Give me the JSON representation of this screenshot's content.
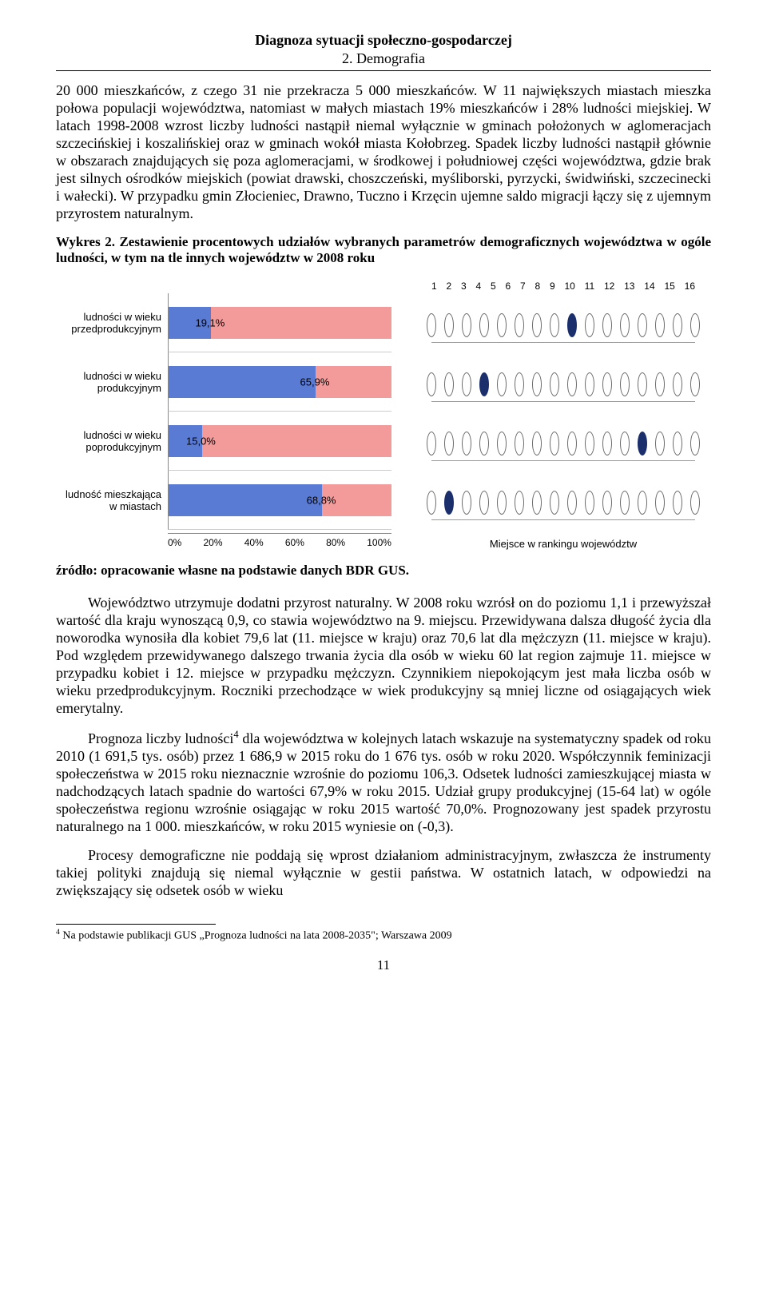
{
  "header": {
    "title": "Diagnoza sytuacji społeczno-gospodarczej",
    "subtitle": "2. Demografia"
  },
  "para1": "20 000 mieszkańców, z czego 31 nie przekracza 5 000 mieszkańców. W 11 największych miastach mieszka połowa populacji województwa, natomiast w małych miastach 19% mieszkańców i 28% ludności miejskiej. W latach 1998-2008 wzrost liczby ludności nastąpił niemal wyłącznie w gminach położonych w aglomeracjach szczecińskiej i koszalińskiej oraz w gminach wokół miasta Kołobrzeg. Spadek liczby ludności nastąpił głównie w obszarach znajdujących się poza aglomeracjami, w środkowej i południowej części województwa, gdzie brak jest silnych ośrodków miejskich (powiat drawski, choszczeński, myśliborski, pyrzycki, świdwiński, szczecinecki i wałecki). W przypadku gmin Złocieniec, Drawno, Tuczno i Krzęcin ujemne saldo migracji łączy się z ujemnym przyrostem naturalnym.",
  "chart_title_bold": "Wykres 2. Zestawienie procentowych udziałów wybranych parametrów demograficznych województwa w ogóle ludności, w tym na tle innych województw w 2008 roku",
  "chart": {
    "type": "bar+ranking",
    "bar_max_pct": 100,
    "blue": "#5a7bd4",
    "pink": "#f39a9a",
    "bg": "#ffffff",
    "rank_count": 16,
    "marker_fill": "#1a2f6b",
    "marker_stroke": "#6b6b6b",
    "rows": [
      {
        "label": "ludności w wieku przedprodukcyjnym",
        "value": 19.1,
        "val_text": "19,1%",
        "rank": 9
      },
      {
        "label": "ludności w wieku produkcyjnym",
        "value": 65.9,
        "val_text": "65,9%",
        "rank": 4
      },
      {
        "label": "ludności w wieku poprodukcyjnym",
        "value": 15.0,
        "val_text": "15,0%",
        "rank": 13
      },
      {
        "label": "ludność mieszkająca w miastach",
        "value": 68.8,
        "val_text": "68,8%",
        "rank": 2
      }
    ],
    "x_ticks": [
      "0%",
      "20%",
      "40%",
      "60%",
      "80%",
      "100%"
    ],
    "rank_caption": "Miejsce w rankingu województw"
  },
  "source": "źródło: opracowanie własne na podstawie danych BDR GUS.",
  "para2": "Województwo utrzymuje dodatni przyrost naturalny. W 2008 roku wzrósł on do poziomu 1,1 i przewyższał wartość dla kraju wynoszącą 0,9, co stawia województwo na 9. miejscu. Przewidywana dalsza długość życia dla noworodka wynosiła dla kobiet 79,6 lat (11. miejsce w kraju) oraz 70,6 lat dla mężczyzn (11. miejsce w kraju). Pod względem przewidywanego dalszego trwania życia dla osób w wieku 60 lat region zajmuje 11. miejsce w przypadku kobiet i 12. miejsce w przypadku mężczyzn. Czynnikiem niepokojącym jest mała liczba osób w wieku przedprodukcyjnym. Roczniki przechodzące w wiek produkcyjny są mniej liczne od osiągających wiek emerytalny.",
  "para3_a": "Prognoza liczby ludności",
  "para3_sup": "4",
  "para3_b": " dla województwa w kolejnych latach wskazuje na systematyczny spadek od roku 2010 (1 691,5 tys. osób) przez 1 686,9 w 2015 roku do 1 676 tys. osób w roku 2020. Współczynnik feminizacji społeczeństwa w 2015 roku nieznacznie wzrośnie do poziomu 106,3. Odsetek ludności zamieszkującej miasta w nadchodzących latach spadnie do wartości 67,9% w roku 2015. Udział grupy produkcyjnej (15-64 lat) w ogóle społeczeństwa regionu wzrośnie osiągając w roku 2015 wartość 70,0%. Prognozowany jest spadek przyrostu naturalnego na 1 000. mieszkańców, w roku 2015 wyniesie on (-0,3).",
  "para4": "Procesy demograficzne nie poddają się wprost działaniom administracyjnym, zwłaszcza że instrumenty takiej polityki znajdują się niemal wyłącznie w gestii państwa. W ostatnich latach, w odpowiedzi na zwiększający się odsetek osób w wieku",
  "footnote": "4 Na podstawie publikacji GUS „Prognoza ludności na lata 2008-2035\"; Warszawa 2009",
  "page_number": "11"
}
